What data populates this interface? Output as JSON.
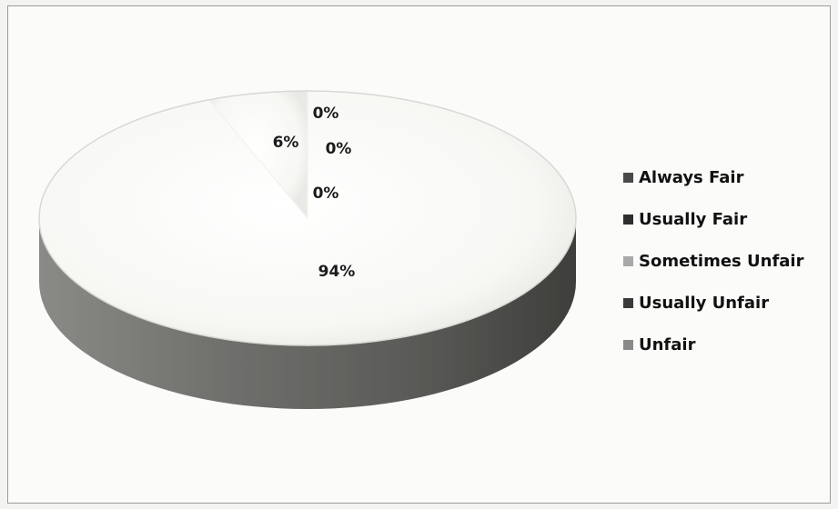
{
  "chart_data": {
    "type": "pie",
    "categories": [
      "Always Fair",
      "Usually Fair",
      "Sometimes Unfair",
      "Usually Unfair",
      "Unfair"
    ],
    "values": [
      94,
      0,
      0,
      0,
      6
    ],
    "slice_labels": [
      "94%",
      "0%",
      "0%",
      "0%",
      "6%"
    ],
    "legend_position": "right",
    "colors": {
      "Always Fair": "#4a4a4a",
      "Usually Fair": "#2e2e2e",
      "Sometimes Unfair": "#a8a8a8",
      "Usually Unfair": "#3a3a3a",
      "Unfair": "#8a8a8a"
    }
  }
}
